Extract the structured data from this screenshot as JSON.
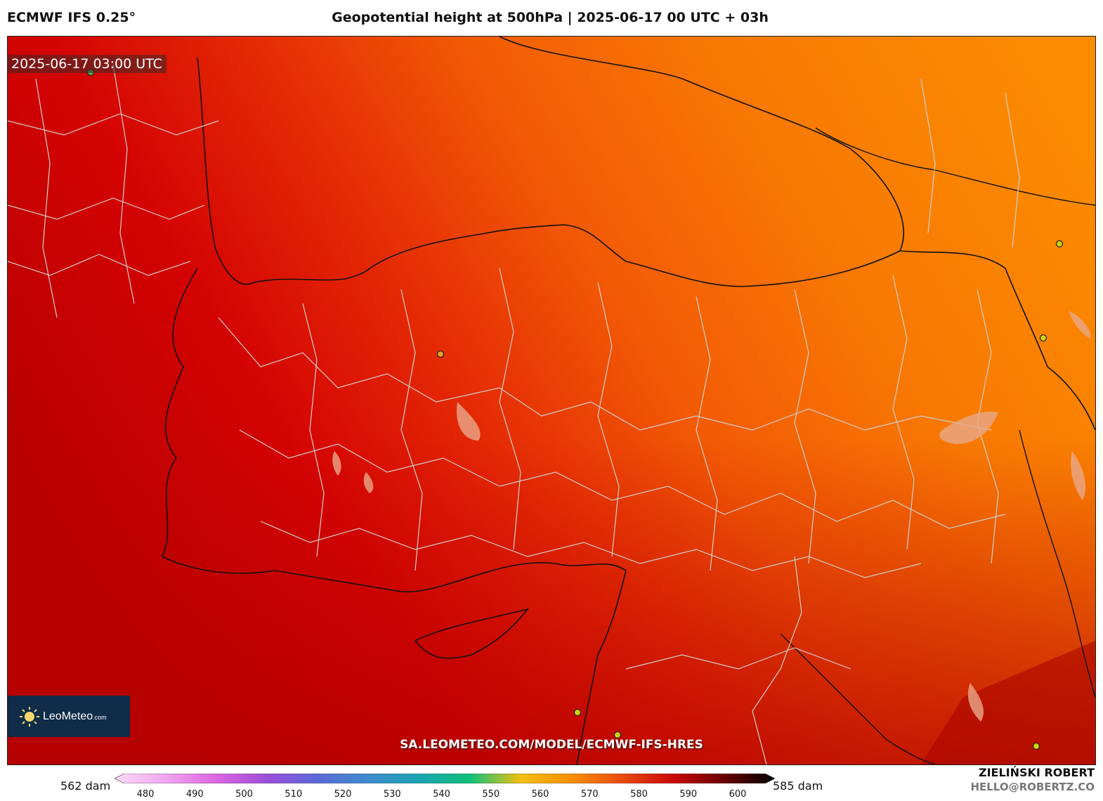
{
  "header": {
    "model": "ECMWF IFS 0.25°",
    "title": "Geopotential height at 500hPa | 2025-06-17 00 UTC + 03h"
  },
  "map": {
    "timestamp": "2025-06-17 03:00 UTC",
    "watermark": "SA.LEOMETEO.COM/MODEL/ECMWF-IFS-HRES",
    "colors": {
      "low": "#c20000",
      "mid": "#ef3a06",
      "high": "#fb8a00",
      "coast": "#111111",
      "border": "#c9c9c9"
    }
  },
  "logo": {
    "name": "LeoMeteo",
    "suffix": ".com",
    "icon": "sun-icon"
  },
  "colorbar": {
    "min_label": "562 dam",
    "max_label": "585 dam",
    "ticks": [
      "480",
      "490",
      "500",
      "510",
      "520",
      "530",
      "540",
      "550",
      "560",
      "570",
      "580",
      "590",
      "600"
    ],
    "stops": [
      "#fadcf8",
      "#f0a6ee",
      "#dd66e0",
      "#9b4fd9",
      "#5b6ad6",
      "#3f8ccf",
      "#1aa5b0",
      "#10c07a",
      "#f2c010",
      "#f88f06",
      "#e84a0a",
      "#c80808",
      "#6a0000",
      "#000000"
    ]
  },
  "credits": {
    "author": "ZIELIŃSKI ROBERT",
    "email": "HELLO@ROBERTZ.CO"
  }
}
